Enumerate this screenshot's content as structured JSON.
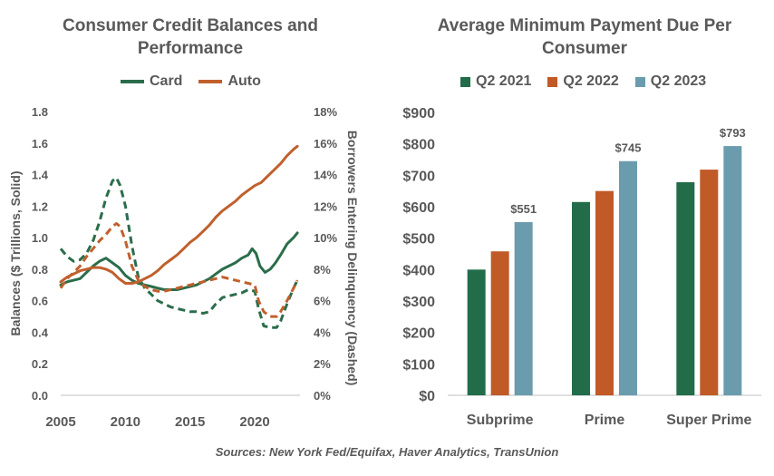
{
  "chart_data": [
    {
      "type": "line",
      "title": "Consumer Credit Balances and Performance",
      "ylabel": "Balances ($ Trillions, Solid)",
      "y2label": "Borrowers Entering Delinquency (Dashed)",
      "xlim": [
        2005,
        2023.5
      ],
      "ylim": [
        0,
        1.8
      ],
      "y2lim": [
        0,
        18
      ],
      "x_ticks": [
        2005,
        2010,
        2015,
        2020
      ],
      "y_ticks": [
        "0.0",
        "0.2",
        "0.4",
        "0.6",
        "0.8",
        "1.0",
        "1.2",
        "1.4",
        "1.6",
        "1.8"
      ],
      "y2_ticks": [
        "0%",
        "2%",
        "4%",
        "6%",
        "8%",
        "10%",
        "12%",
        "14%",
        "16%",
        "18%"
      ],
      "legend": "top",
      "grid": false,
      "series": [
        {
          "name": "Card",
          "style": "solid",
          "axis": "left",
          "color": "#2b6d4b",
          "points": [
            [
              2005,
              0.7
            ],
            [
              2005.5,
              0.72
            ],
            [
              2006,
              0.73
            ],
            [
              2006.5,
              0.74
            ],
            [
              2007,
              0.78
            ],
            [
              2007.5,
              0.82
            ],
            [
              2008,
              0.85
            ],
            [
              2008.5,
              0.87
            ],
            [
              2009,
              0.84
            ],
            [
              2009.5,
              0.81
            ],
            [
              2010,
              0.76
            ],
            [
              2010.5,
              0.73
            ],
            [
              2011,
              0.71
            ],
            [
              2011.5,
              0.7
            ],
            [
              2012,
              0.69
            ],
            [
              2012.5,
              0.68
            ],
            [
              2013,
              0.67
            ],
            [
              2013.5,
              0.67
            ],
            [
              2014,
              0.67
            ],
            [
              2014.5,
              0.68
            ],
            [
              2015,
              0.69
            ],
            [
              2015.5,
              0.7
            ],
            [
              2016,
              0.72
            ],
            [
              2016.5,
              0.74
            ],
            [
              2017,
              0.77
            ],
            [
              2017.5,
              0.8
            ],
            [
              2018,
              0.82
            ],
            [
              2018.5,
              0.84
            ],
            [
              2019,
              0.87
            ],
            [
              2019.5,
              0.89
            ],
            [
              2019.8,
              0.93
            ],
            [
              2020.1,
              0.9
            ],
            [
              2020.4,
              0.82
            ],
            [
              2020.8,
              0.78
            ],
            [
              2021.2,
              0.8
            ],
            [
              2021.6,
              0.84
            ],
            [
              2022,
              0.89
            ],
            [
              2022.5,
              0.96
            ],
            [
              2023,
              1.0
            ],
            [
              2023.3,
              1.03
            ]
          ]
        },
        {
          "name": "Auto",
          "style": "solid",
          "axis": "left",
          "color": "#c0602d",
          "points": [
            [
              2005,
              0.72
            ],
            [
              2005.5,
              0.75
            ],
            [
              2006,
              0.77
            ],
            [
              2006.5,
              0.79
            ],
            [
              2007,
              0.8
            ],
            [
              2007.5,
              0.81
            ],
            [
              2008,
              0.81
            ],
            [
              2008.5,
              0.8
            ],
            [
              2009,
              0.78
            ],
            [
              2009.5,
              0.74
            ],
            [
              2010,
              0.71
            ],
            [
              2010.5,
              0.71
            ],
            [
              2011,
              0.72
            ],
            [
              2011.5,
              0.74
            ],
            [
              2012,
              0.76
            ],
            [
              2012.5,
              0.79
            ],
            [
              2013,
              0.83
            ],
            [
              2013.5,
              0.86
            ],
            [
              2014,
              0.89
            ],
            [
              2014.5,
              0.93
            ],
            [
              2015,
              0.97
            ],
            [
              2015.5,
              1.0
            ],
            [
              2016,
              1.04
            ],
            [
              2016.5,
              1.08
            ],
            [
              2017,
              1.13
            ],
            [
              2017.5,
              1.17
            ],
            [
              2018,
              1.2
            ],
            [
              2018.5,
              1.23
            ],
            [
              2019,
              1.27
            ],
            [
              2019.5,
              1.3
            ],
            [
              2020,
              1.33
            ],
            [
              2020.5,
              1.35
            ],
            [
              2021,
              1.39
            ],
            [
              2021.5,
              1.43
            ],
            [
              2022,
              1.47
            ],
            [
              2022.5,
              1.52
            ],
            [
              2023,
              1.56
            ],
            [
              2023.3,
              1.58
            ]
          ]
        },
        {
          "name": "Card",
          "style": "dashed",
          "axis": "right",
          "color": "#2b6d4b",
          "points": [
            [
              2005,
              9.3
            ],
            [
              2005.5,
              8.8
            ],
            [
              2006,
              8.5
            ],
            [
              2006.5,
              8.6
            ],
            [
              2007,
              9.0
            ],
            [
              2007.5,
              9.8
            ],
            [
              2008,
              11.0
            ],
            [
              2008.5,
              12.5
            ],
            [
              2009,
              13.6
            ],
            [
              2009.3,
              13.8
            ],
            [
              2009.6,
              13.3
            ],
            [
              2010,
              12.0
            ],
            [
              2010.5,
              9.5
            ],
            [
              2011,
              7.5
            ],
            [
              2011.5,
              6.8
            ],
            [
              2012,
              6.4
            ],
            [
              2012.5,
              6.0
            ],
            [
              2013,
              5.8
            ],
            [
              2013.5,
              5.6
            ],
            [
              2014,
              5.5
            ],
            [
              2014.5,
              5.4
            ],
            [
              2015,
              5.3
            ],
            [
              2015.5,
              5.3
            ],
            [
              2016,
              5.2
            ],
            [
              2016.5,
              5.3
            ],
            [
              2017,
              5.8
            ],
            [
              2017.5,
              6.2
            ],
            [
              2018,
              6.3
            ],
            [
              2018.5,
              6.4
            ],
            [
              2019,
              6.5
            ],
            [
              2019.5,
              6.7
            ],
            [
              2020,
              6.6
            ],
            [
              2020.3,
              5.5
            ],
            [
              2020.7,
              4.4
            ],
            [
              2021.2,
              4.3
            ],
            [
              2021.7,
              4.3
            ],
            [
              2022,
              4.7
            ],
            [
              2022.5,
              5.8
            ],
            [
              2023,
              6.8
            ],
            [
              2023.3,
              7.3
            ]
          ]
        },
        {
          "name": "Auto",
          "style": "dashed",
          "axis": "right",
          "color": "#c0602d",
          "points": [
            [
              2005,
              6.8
            ],
            [
              2005.5,
              7.4
            ],
            [
              2006,
              7.8
            ],
            [
              2006.5,
              8.2
            ],
            [
              2007,
              8.8
            ],
            [
              2007.5,
              9.3
            ],
            [
              2008,
              9.8
            ],
            [
              2008.5,
              10.2
            ],
            [
              2009,
              10.7
            ],
            [
              2009.3,
              10.9
            ],
            [
              2009.6,
              10.7
            ],
            [
              2010,
              9.8
            ],
            [
              2010.5,
              8.2
            ],
            [
              2011,
              7.3
            ],
            [
              2011.5,
              6.9
            ],
            [
              2012,
              6.7
            ],
            [
              2012.5,
              6.6
            ],
            [
              2013,
              6.6
            ],
            [
              2013.5,
              6.7
            ],
            [
              2014,
              6.8
            ],
            [
              2014.5,
              6.9
            ],
            [
              2015,
              7.0
            ],
            [
              2015.5,
              7.1
            ],
            [
              2016,
              7.2
            ],
            [
              2016.5,
              7.3
            ],
            [
              2017,
              7.4
            ],
            [
              2017.5,
              7.5
            ],
            [
              2018,
              7.4
            ],
            [
              2018.5,
              7.3
            ],
            [
              2019,
              7.2
            ],
            [
              2019.5,
              7.1
            ],
            [
              2020,
              7.0
            ],
            [
              2020.3,
              6.0
            ],
            [
              2020.7,
              5.3
            ],
            [
              2021.2,
              5.0
            ],
            [
              2021.7,
              5.0
            ],
            [
              2022,
              5.3
            ],
            [
              2022.5,
              6.0
            ],
            [
              2023,
              6.8
            ],
            [
              2023.3,
              7.3
            ]
          ]
        }
      ]
    },
    {
      "type": "bar",
      "title": "Average Minimum Payment Due Per Consumer",
      "categories": [
        "Subprime",
        "Prime",
        "Super Prime"
      ],
      "ylim": [
        0,
        900
      ],
      "y_ticks": [
        "$0",
        "$100",
        "$200",
        "$300",
        "$400",
        "$500",
        "$600",
        "$700",
        "$800",
        "$900"
      ],
      "legend": "top",
      "grid": false,
      "series": [
        {
          "name": "Q2 2021",
          "color": "#226c4a",
          "values": [
            400,
            615,
            678
          ]
        },
        {
          "name": "Q2 2022",
          "color": "#c05a27",
          "values": [
            458,
            650,
            718
          ]
        },
        {
          "name": "Q2 2023",
          "color": "#6b9cae",
          "values": [
            551,
            745,
            793
          ]
        }
      ],
      "data_labels": [
        {
          "series": 2,
          "category": 0,
          "text": "$551"
        },
        {
          "series": 2,
          "category": 1,
          "text": "$745"
        },
        {
          "series": 2,
          "category": 2,
          "text": "$793"
        }
      ]
    }
  ],
  "source": "Sources: New York Fed/Equifax, Haver Analytics, TransUnion"
}
